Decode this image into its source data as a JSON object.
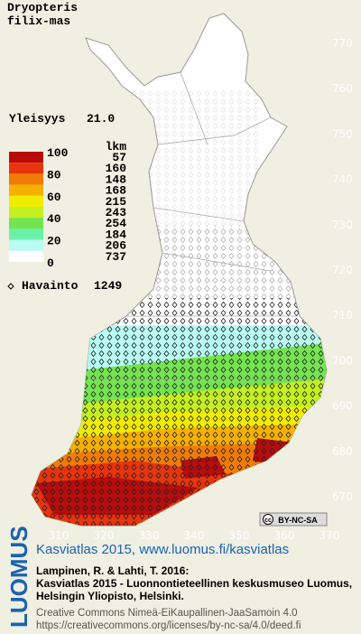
{
  "title": [
    "Dryopteris",
    "filix-mas"
  ],
  "frequency": {
    "label": "Yleisyys",
    "value": "21.0"
  },
  "legend": {
    "count_header": "lkm",
    "scale_labels": [
      100,
      80,
      60,
      40,
      20,
      0
    ],
    "classes": [
      {
        "count": 57,
        "color": "#b80c0c"
      },
      {
        "count": 160,
        "color": "#e8340c"
      },
      {
        "count": 148,
        "color": "#f07c08"
      },
      {
        "count": 168,
        "color": "#f5b000"
      },
      {
        "count": 215,
        "color": "#f0ec00"
      },
      {
        "count": 243,
        "color": "#c4f020"
      },
      {
        "count": 254,
        "color": "#74e450"
      },
      {
        "count": 184,
        "color": "#6cf0a8"
      },
      {
        "count": 206,
        "color": "#b8fcf4"
      },
      {
        "count": 737,
        "color": "#ffffff"
      }
    ]
  },
  "observations": {
    "label": "Havainto",
    "value": 1249
  },
  "map": {
    "y_ticks": [
      770,
      760,
      750,
      740,
      730,
      720,
      710,
      700,
      690,
      680,
      670
    ],
    "x_ticks": [
      310,
      320,
      330,
      340,
      350,
      360,
      370
    ],
    "license_badge": "BY-NC-SA",
    "license_icon": "cc"
  },
  "footer": {
    "logo": "LUOMUS",
    "headline": "Kasviatlas 2015, www.luomus.fi/kasviatlas",
    "citation": [
      "Lampinen, R. & Lahti, T. 2016:",
      "Kasviatlas 2015 - Luonnontieteellinen keskusmuseo Luomus,",
      "Helsingin Yliopisto, Helsinki."
    ],
    "license": [
      "Creative Commons Nimeä-EiKaupallinen-JaaSamoin 4.0",
      "https://creativecommons.org/licenses/by-nc-sa/4.0/deed.fi"
    ]
  }
}
